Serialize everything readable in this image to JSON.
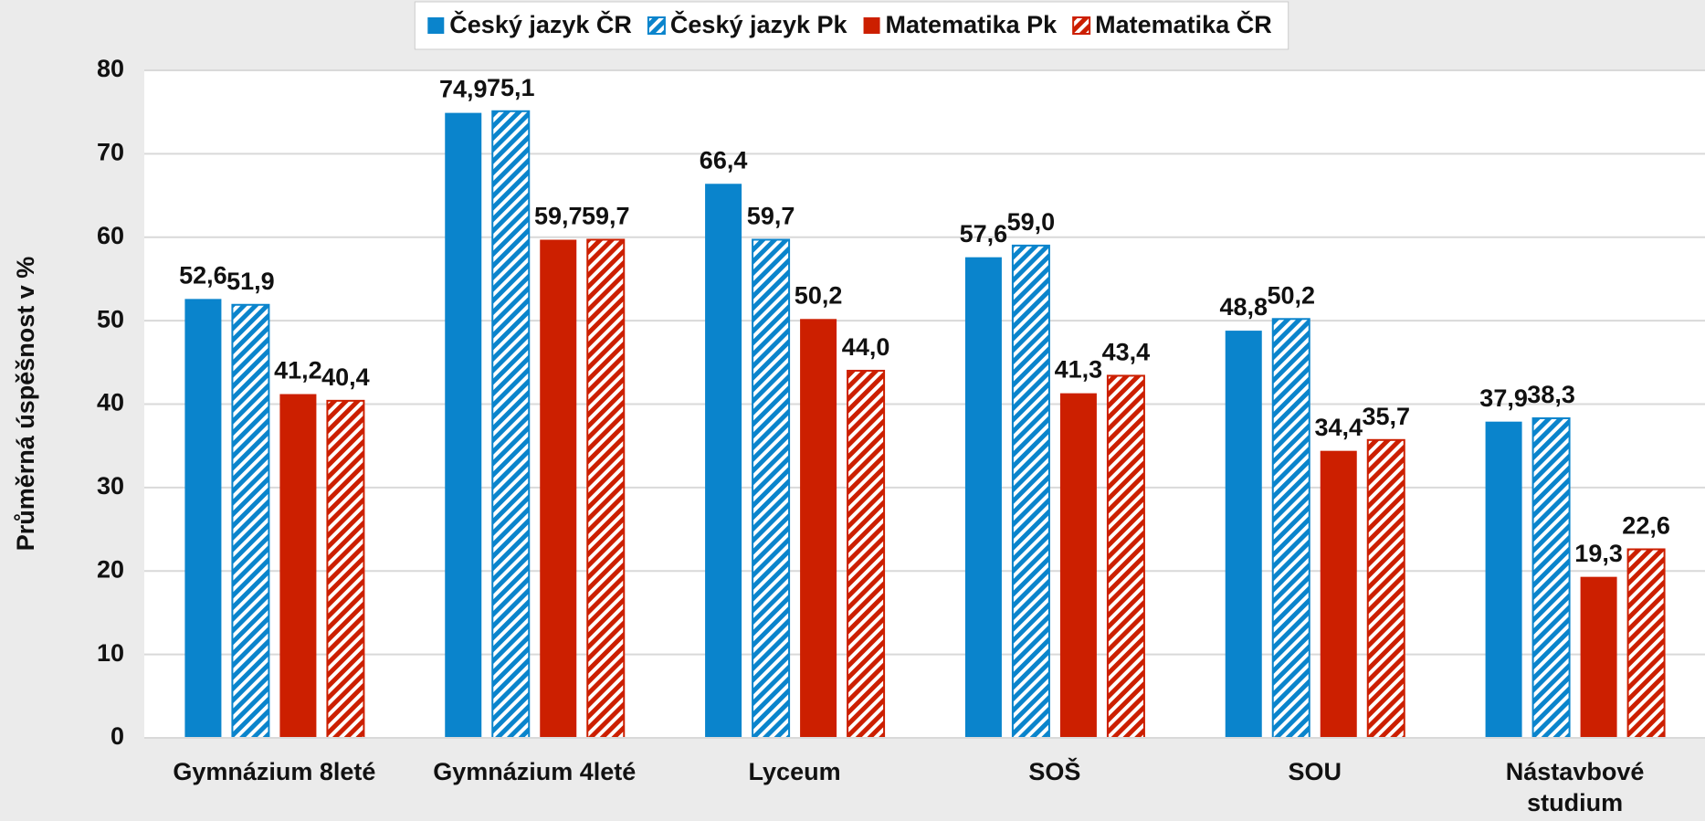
{
  "chart_data": {
    "type": "bar",
    "y_label": "Průměrná úspěšnost v %",
    "categories": [
      "Gymnázium 8leté",
      "Gymnázium 4leté",
      "Lyceum",
      "SOŠ",
      "SOU",
      "Nástavbové studium"
    ],
    "series": [
      {
        "name": "Český jazyk ČR",
        "color": "#0a84cc",
        "hatched": false,
        "values": [
          52.6,
          74.9,
          66.4,
          57.6,
          48.8,
          37.9
        ],
        "value_labels": [
          "52,6",
          "74,9",
          "66,4",
          "57,6",
          "48,8",
          "37,9"
        ]
      },
      {
        "name": "Český jazyk Pk",
        "color": "#0a84cc",
        "hatched": true,
        "values": [
          51.9,
          75.1,
          59.7,
          59.0,
          50.2,
          38.3
        ],
        "value_labels": [
          "51,9",
          "75,1",
          "59,7",
          "59,0",
          "50,2",
          "38,3"
        ]
      },
      {
        "name": "Matematika Pk",
        "color": "#cc1f00",
        "hatched": false,
        "values": [
          41.2,
          59.7,
          50.2,
          41.3,
          34.4,
          19.3
        ],
        "value_labels": [
          "41,2",
          "59,7",
          "50,2",
          "41,3",
          "34,4",
          "19,3"
        ]
      },
      {
        "name": "Matematika ČR",
        "color": "#cc1f00",
        "hatched": true,
        "values": [
          40.4,
          59.7,
          44.0,
          43.4,
          35.7,
          22.6
        ],
        "value_labels": [
          "40,4",
          "59,7",
          "44,0",
          "43,4",
          "35,7",
          "22,6"
        ]
      }
    ],
    "ylim": [
      0,
      80
    ],
    "yticks": [
      0,
      10,
      20,
      30,
      40,
      50,
      60,
      70,
      80
    ],
    "grid": true,
    "legend": "top"
  }
}
